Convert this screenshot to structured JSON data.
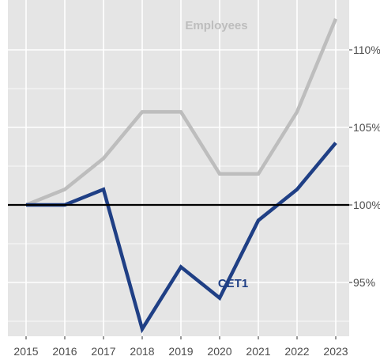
{
  "chart_data": {
    "type": "line",
    "x": [
      2015,
      2016,
      2017,
      2018,
      2019,
      2020,
      2021,
      2022,
      2023
    ],
    "x_tick_labels": [
      "2015",
      "2016",
      "2017",
      "2018",
      "2019",
      "2020",
      "2021",
      "2022",
      "2023"
    ],
    "y_ticks": [
      95,
      100,
      105,
      110
    ],
    "y_tick_labels": [
      "95%",
      "100%",
      "105%",
      "110%"
    ],
    "ylim": [
      91.5,
      112
    ],
    "reference_line": 100,
    "grid": true,
    "series": [
      {
        "name": "Employees",
        "color": "#bdbdbd",
        "values": [
          100,
          101,
          103,
          106,
          106,
          102,
          102,
          106,
          112
        ],
        "label_at_index": 4
      },
      {
        "name": "CET1",
        "color": "#1f3f85",
        "values": [
          100,
          100,
          101,
          92,
          96,
          94,
          99,
          101,
          104
        ],
        "label_at_index": 5
      }
    ],
    "title": "",
    "xlabel": "",
    "ylabel": ""
  },
  "colors": {
    "panel_background": "#e5e5e5",
    "grid": "#ffffff",
    "reference_line": "#000000",
    "tick_text": "#4d4d4d"
  }
}
